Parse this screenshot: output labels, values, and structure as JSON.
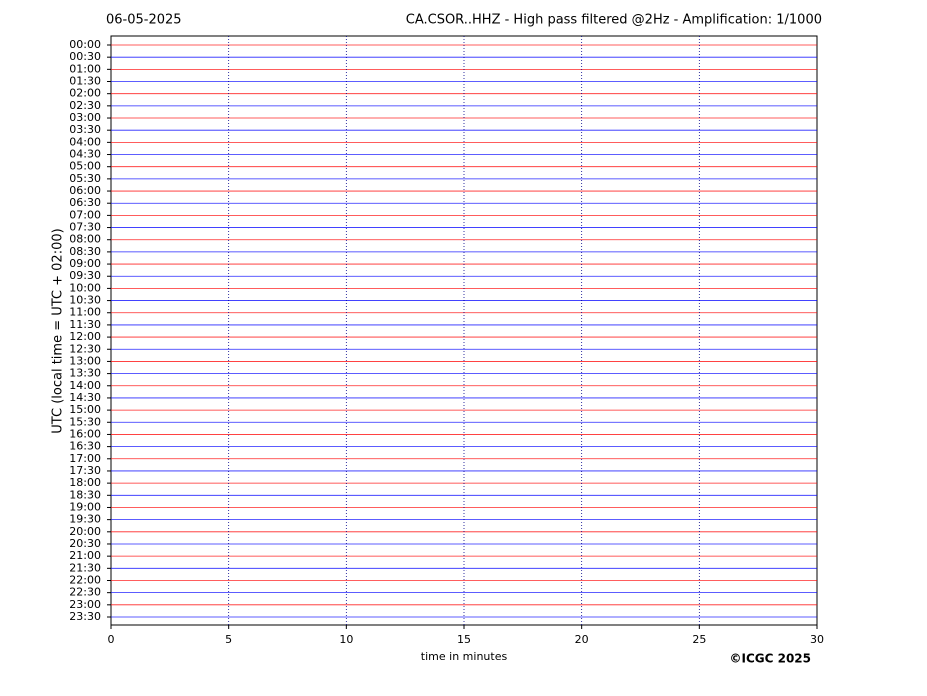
{
  "chart_data": {
    "type": "helicorder",
    "date": "06-05-2025",
    "title": "CA.CSOR..HHZ - High pass filtered @2Hz - Amplification: 1/1000",
    "ylabel": "UTC (local time = UTC + 02:00)",
    "xlabel": "time in minutes",
    "credit": "©ICGC 2025",
    "categories": [
      "00:00",
      "00:30",
      "01:00",
      "01:30",
      "02:00",
      "02:30",
      "03:00",
      "03:30",
      "04:00",
      "04:30",
      "05:00",
      "05:30",
      "06:00",
      "06:30",
      "07:00",
      "07:30",
      "08:00",
      "08:30",
      "09:00",
      "09:30",
      "10:00",
      "10:30",
      "11:00",
      "11:30",
      "12:00",
      "12:30",
      "13:00",
      "13:30",
      "14:00",
      "14:30",
      "15:00",
      "15:30",
      "16:00",
      "16:30",
      "17:00",
      "17:30",
      "18:00",
      "18:30",
      "19:00",
      "19:30",
      "20:00",
      "20:30",
      "21:00",
      "21:30",
      "22:00",
      "22:30",
      "23:00",
      "23:30"
    ],
    "trace_colors": [
      "#ff0000",
      "#0000ff"
    ],
    "xlim": [
      0,
      30
    ],
    "xticks": [
      0,
      5,
      10,
      15,
      20,
      25,
      30
    ],
    "grid": true,
    "grid_color": "#00008b"
  }
}
